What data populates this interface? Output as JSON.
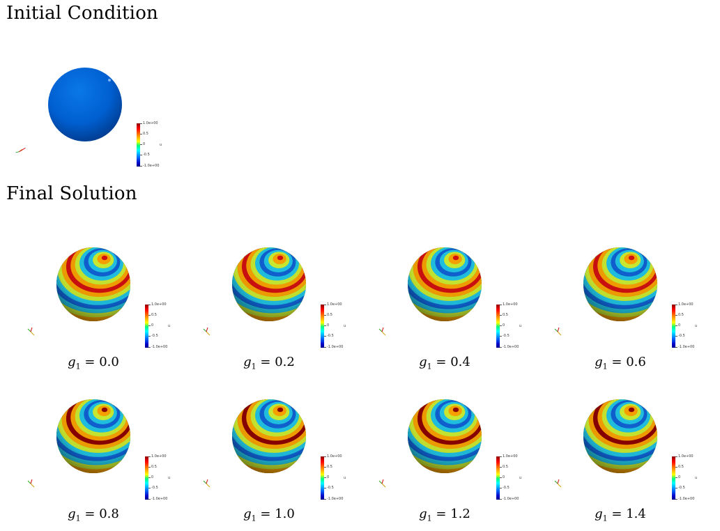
{
  "sections": {
    "initial_title": "Initial Condition",
    "final_title": "Final Solution"
  },
  "colorbar": {
    "ticks": [
      "1.0e+00",
      "0.5",
      "0",
      "-0.5",
      "-1.0e+00"
    ],
    "variable": "u"
  },
  "captions": {
    "symbol": "g",
    "subscript": "1",
    "equals": " = "
  },
  "panels": [
    {
      "g1": "0.0",
      "stripe_intensity": 0.55
    },
    {
      "g1": "0.2",
      "stripe_intensity": 0.62
    },
    {
      "g1": "0.4",
      "stripe_intensity": 0.7
    },
    {
      "g1": "0.6",
      "stripe_intensity": 0.78
    },
    {
      "g1": "0.8",
      "stripe_intensity": 0.85
    },
    {
      "g1": "1.0",
      "stripe_intensity": 0.9
    },
    {
      "g1": "1.2",
      "stripe_intensity": 0.95
    },
    {
      "g1": "1.4",
      "stripe_intensity": 1.0
    }
  ]
}
